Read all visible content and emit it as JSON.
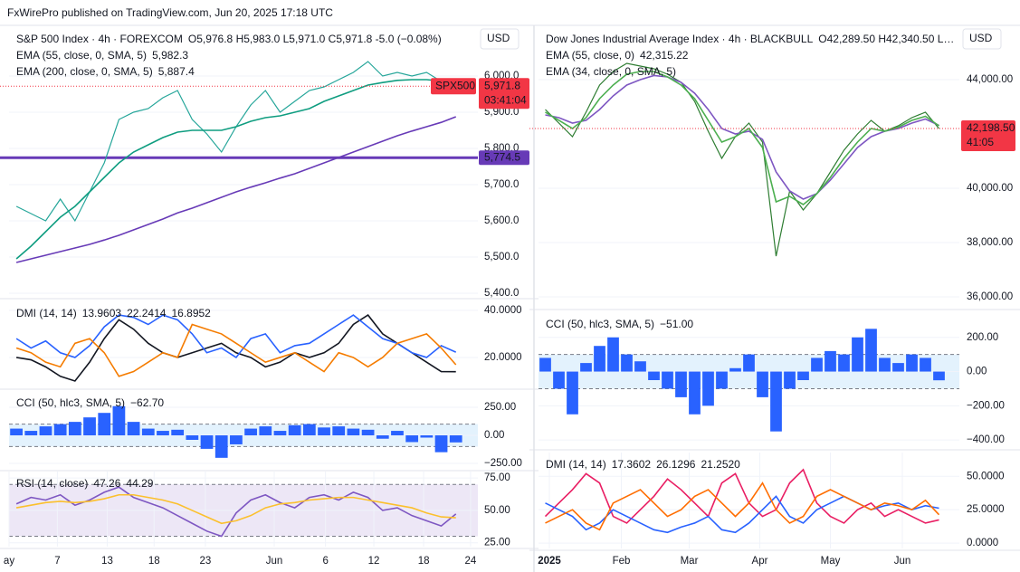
{
  "header": "FxWirePro published on TradingView.com, Jun 20, 2025 17:18 UTC",
  "chart_data": [
    {
      "type": "line",
      "title": "S&P 500 Index · 4h · FOREXCOM",
      "ohlc": "O5,976.8 H5,983.0 L5,971.0 C5,971.8 -5.0 (−0.08%)",
      "currency": "USD",
      "xlim": [
        -0.5,
        31.5
      ],
      "ylim": [
        5390,
        6135
      ],
      "grid": true,
      "yticks": [
        {
          "value": 5400,
          "label": "5,400.0"
        },
        {
          "value": 5500,
          "label": "5,500.0"
        },
        {
          "value": 5600,
          "label": "5,600.0"
        },
        {
          "value": 5700,
          "label": "5,700.0"
        },
        {
          "value": 5800,
          "label": "5,800.0"
        },
        {
          "value": 5900,
          "label": "5,900.0"
        },
        {
          "value": 6000,
          "label": "6,000.0"
        }
      ],
      "series": [
        {
          "color": "#26a69a",
          "values": [
            5640,
            5620,
            5600,
            5660,
            5600,
            5680,
            5760,
            5880,
            5900,
            5910,
            5940,
            5960,
            5880,
            5840,
            5790,
            5860,
            5920,
            5960,
            5900,
            5930,
            5960,
            5970,
            5990,
            6010,
            6040,
            6000,
            6010,
            6000,
            6010,
            5985,
            5971.8
          ]
        },
        {
          "name": "EMA (55, close, 0, SMA, 5)",
          "last_label": "5,982.3",
          "color": "#0f9d80",
          "values": [
            5495,
            5530,
            5570,
            5610,
            5640,
            5680,
            5720,
            5760,
            5790,
            5810,
            5830,
            5845,
            5850,
            5850,
            5850,
            5860,
            5875,
            5885,
            5890,
            5900,
            5910,
            5930,
            5945,
            5960,
            5975,
            5982,
            5988,
            5990,
            5990,
            5986,
            5982.3
          ]
        },
        {
          "name": "EMA (200, close, 0, SMA, 5)",
          "last_label": "5,887.4",
          "color": "#673ab7",
          "values": [
            5485,
            5495,
            5505,
            5515,
            5525,
            5535,
            5547,
            5560,
            5575,
            5590,
            5605,
            5622,
            5635,
            5650,
            5665,
            5680,
            5693,
            5705,
            5718,
            5730,
            5745,
            5760,
            5775,
            5790,
            5805,
            5820,
            5835,
            5848,
            5860,
            5872,
            5887.4
          ]
        }
      ],
      "hlines": [
        {
          "value": 5774.5,
          "label": "5,774.5",
          "color": "#673ab7"
        }
      ],
      "last": {
        "value": 5971.8,
        "label": "5,971.8",
        "color": "#f23645"
      },
      "symbol": "SPX500",
      "timer": "03:41:04"
    },
    {
      "type": "line",
      "title": "DMI (14, 14)",
      "xlim": [
        -0.5,
        31.5
      ],
      "ylim": [
        7.3,
        43.8
      ],
      "grid": true,
      "yticks": [
        {
          "value": 20,
          "label": "20.0000"
        },
        {
          "value": 40,
          "label": "40.0000"
        }
      ],
      "series": [
        {
          "last_label": "13.9603",
          "color": "#131722",
          "values": [
            20,
            19,
            16,
            12,
            10,
            18,
            28,
            36,
            32,
            26,
            22,
            20,
            22,
            24,
            26,
            22,
            20,
            16,
            18,
            22,
            20,
            22,
            26,
            34,
            38,
            30,
            26,
            22,
            18,
            14,
            13.9603
          ]
        },
        {
          "last_label": "22.2414",
          "color": "#2962ff",
          "values": [
            28,
            24,
            27,
            22,
            20,
            25,
            33,
            38,
            37,
            34,
            38,
            36,
            30,
            22,
            24,
            20,
            28,
            30,
            22,
            25,
            26,
            30,
            34,
            38,
            33,
            28,
            26,
            22,
            20,
            25,
            22.2414
          ]
        },
        {
          "last_label": "16.8952",
          "color": "#f57c00",
          "values": [
            24,
            22,
            18,
            16,
            26,
            28,
            22,
            12,
            14,
            18,
            22,
            20,
            34,
            32,
            30,
            26,
            22,
            18,
            20,
            22,
            18,
            14,
            22,
            20,
            16,
            20,
            26,
            28,
            30,
            24,
            16.8952
          ]
        }
      ]
    },
    {
      "type": "bar",
      "title": "CCI (50, hlc3, SMA, 5)",
      "xlim": [
        -0.5,
        31.5
      ],
      "ylim": [
        -298,
        395
      ],
      "grid": true,
      "band": [
        -100,
        100
      ],
      "band_color": "#e3f2fd",
      "yticks": [
        {
          "value": -250,
          "label": "−250.00"
        },
        {
          "value": 0,
          "label": "0.00"
        },
        {
          "value": 250,
          "label": "250.00"
        }
      ],
      "series": [
        {
          "last_label": "−62.70",
          "color": "#2962ff",
          "values": [
            60,
            40,
            80,
            100,
            120,
            160,
            200,
            260,
            120,
            60,
            40,
            50,
            -40,
            -120,
            -200,
            -80,
            60,
            80,
            40,
            90,
            100,
            70,
            80,
            60,
            50,
            -30,
            40,
            -60,
            -20,
            -150,
            -62.7
          ]
        }
      ]
    },
    {
      "type": "line",
      "title": "RSI (14, close)",
      "xlim": [
        -0.5,
        31.5
      ],
      "ylim": [
        22,
        80
      ],
      "grid": true,
      "band": [
        30,
        70
      ],
      "band_color": "#ede7f6",
      "yticks": [
        {
          "value": 25,
          "label": "25.00"
        },
        {
          "value": 50,
          "label": "50.00"
        },
        {
          "value": 75,
          "label": "75.00"
        }
      ],
      "xticks": [
        {
          "value": -0.5,
          "label": "ay"
        },
        {
          "value": 2.8,
          "label": "7"
        },
        {
          "value": 6.2,
          "label": "13"
        },
        {
          "value": 9.4,
          "label": "18"
        },
        {
          "value": 12.9,
          "label": "23"
        },
        {
          "value": 17.6,
          "label": "Jun"
        },
        {
          "value": 21.1,
          "label": "6"
        },
        {
          "value": 24.4,
          "label": "12"
        },
        {
          "value": 27.8,
          "label": "18"
        },
        {
          "value": 31.0,
          "label": "24"
        }
      ],
      "series": [
        {
          "last_label": "47.26",
          "color": "#7e57c2",
          "values": [
            55,
            60,
            58,
            62,
            54,
            58,
            64,
            68,
            60,
            56,
            52,
            46,
            40,
            34,
            30,
            48,
            58,
            62,
            56,
            52,
            60,
            62,
            58,
            64,
            60,
            50,
            52,
            46,
            42,
            38,
            47.26
          ]
        },
        {
          "last_label": "44.29",
          "color": "#fbc02d",
          "values": [
            52,
            54,
            56,
            57,
            56,
            57,
            59,
            62,
            62,
            60,
            58,
            55,
            50,
            45,
            40,
            42,
            46,
            52,
            55,
            56,
            58,
            59,
            60,
            60,
            58,
            56,
            54,
            52,
            48,
            45,
            44.29
          ]
        }
      ]
    },
    {
      "type": "line",
      "title": "Dow Jones Industrial Average Index · 4h · BLACKBULL",
      "ohlc": "O42,289.50 H42,340.50 L…",
      "currency": "USD",
      "xlim": [
        -0.5,
        30.5
      ],
      "ylim": [
        35600,
        45933
      ],
      "grid": true,
      "yticks": [
        {
          "value": 36000,
          "label": "36,000.00"
        },
        {
          "value": 38000,
          "label": "38,000.00"
        },
        {
          "value": 40000,
          "label": "40,000.00"
        },
        {
          "value": 44000,
          "label": "44,000.00"
        }
      ],
      "series": [
        {
          "color": "#2e7d32",
          "values": [
            42900,
            42400,
            41900,
            42800,
            43800,
            44300,
            44600,
            44500,
            44400,
            44200,
            43900,
            43200,
            42100,
            41100,
            41900,
            42400,
            41700,
            37500,
            39900,
            39200,
            39800,
            40600,
            41400,
            42000,
            42500,
            42100,
            42300,
            42600,
            42800,
            42198.5
          ]
        },
        {
          "name": "EMA (55, close, 0)",
          "last_label": "42,315.22",
          "color": "#7e57c2",
          "values": [
            42700,
            42600,
            42400,
            42500,
            42900,
            43400,
            43800,
            44000,
            44150,
            44100,
            43900,
            43500,
            42900,
            42200,
            42000,
            42100,
            41800,
            40600,
            39900,
            39600,
            39800,
            40300,
            40900,
            41500,
            41900,
            42100,
            42200,
            42400,
            42550,
            42315.22
          ]
        },
        {
          "name": "EMA (34, close, 0, SMA, 5)",
          "color": "#4caf50",
          "values": [
            42800,
            42500,
            42200,
            42600,
            43300,
            43800,
            44200,
            44300,
            44300,
            44100,
            43800,
            43300,
            42500,
            41700,
            41900,
            42200,
            41500,
            39500,
            39700,
            39400,
            39800,
            40400,
            41100,
            41700,
            42200,
            42100,
            42250,
            42500,
            42650,
            42300
          ]
        }
      ],
      "last": {
        "value": 42198.5,
        "label": "42,198.50",
        "color": "#f23645"
      },
      "timer": "41:05"
    },
    {
      "type": "bar",
      "title": "CCI (50, hlc3, SMA, 5)",
      "xlim": [
        -0.5,
        30.5
      ],
      "ylim": [
        -447,
        347
      ],
      "grid": true,
      "band": [
        -100,
        100
      ],
      "band_color": "#e3f2fd",
      "yticks": [
        {
          "value": -400,
          "label": "−400.00"
        },
        {
          "value": -200,
          "label": "−200.00"
        },
        {
          "value": 0,
          "label": "0.00"
        },
        {
          "value": 200,
          "label": "200.00"
        }
      ],
      "series": [
        {
          "last_label": "−51.00",
          "color": "#2962ff",
          "values": [
            80,
            -100,
            -250,
            50,
            150,
            200,
            100,
            60,
            -50,
            -100,
            -150,
            -250,
            -200,
            -100,
            20,
            100,
            -150,
            -350,
            -100,
            -50,
            80,
            120,
            100,
            200,
            250,
            80,
            50,
            100,
            80,
            -51
          ]
        }
      ]
    },
    {
      "type": "line",
      "title": "DMI (14, 14)",
      "xlim": [
        -0.5,
        30.5
      ],
      "ylim": [
        -4,
        67.8
      ],
      "grid": true,
      "yticks": [
        {
          "value": 0,
          "label": "0.0000"
        },
        {
          "value": 25,
          "label": "25.0000"
        },
        {
          "value": 50,
          "label": "50.0000"
        }
      ],
      "xticks": [
        {
          "value": 0.3,
          "label": "2025"
        },
        {
          "value": 5.6,
          "label": "Feb"
        },
        {
          "value": 10.6,
          "label": "Mar"
        },
        {
          "value": 15.8,
          "label": "Apr"
        },
        {
          "value": 21.0,
          "label": "May"
        },
        {
          "value": 26.3,
          "label": "Jun"
        }
      ],
      "series": [
        {
          "last_label": "17.3602",
          "color": "#e91e63",
          "values": [
            20,
            30,
            40,
            52,
            45,
            20,
            15,
            25,
            35,
            48,
            40,
            30,
            20,
            45,
            52,
            30,
            20,
            25,
            45,
            55,
            30,
            20,
            15,
            25,
            30,
            20,
            25,
            20,
            15,
            17.3602
          ]
        },
        {
          "last_label": "26.1296",
          "color": "#2962ff",
          "values": [
            30,
            25,
            20,
            10,
            15,
            25,
            20,
            15,
            10,
            8,
            12,
            15,
            20,
            10,
            8,
            15,
            25,
            35,
            20,
            15,
            25,
            30,
            35,
            30,
            25,
            28,
            30,
            25,
            28,
            26.1296
          ]
        },
        {
          "last_label": "21.2520",
          "color": "#ff6d00",
          "values": [
            15,
            20,
            25,
            15,
            10,
            30,
            35,
            40,
            30,
            20,
            25,
            35,
            40,
            30,
            20,
            30,
            45,
            25,
            15,
            20,
            35,
            40,
            35,
            30,
            25,
            30,
            28,
            25,
            32,
            21.252
          ]
        }
      ]
    }
  ]
}
